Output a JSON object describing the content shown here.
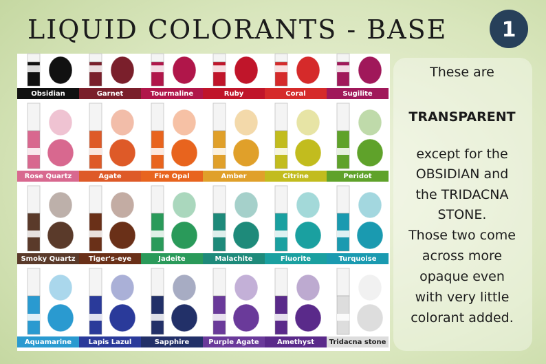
{
  "header": {
    "title": "LIQUID COLORANTS - BASE",
    "badge": "1"
  },
  "colorants": [
    "Obsidian",
    "Garnet",
    "Tourmaline",
    "Ruby",
    "Coral",
    "Sugilite",
    "Rose Quartz",
    "Agate",
    "Fire Opal",
    "Amber",
    "Citrine",
    "Peridot",
    "Smoky Quartz",
    "Tiger's-eye",
    "Jadeite",
    "Malachite",
    "Fluorite",
    "Turquoise",
    "Aquamarine",
    "Lapis Lazul",
    "Sapphire",
    "Purple Agate",
    "Amethyst",
    "Tridacna stone"
  ],
  "note": {
    "lines": [
      "These are",
      "TRANSPARENT",
      "except for the",
      "OBSIDIAN and",
      "the TRIDACNA",
      "STONE.",
      "Those two come",
      "across more",
      "opaque even",
      "with very little",
      "colorant added."
    ]
  }
}
